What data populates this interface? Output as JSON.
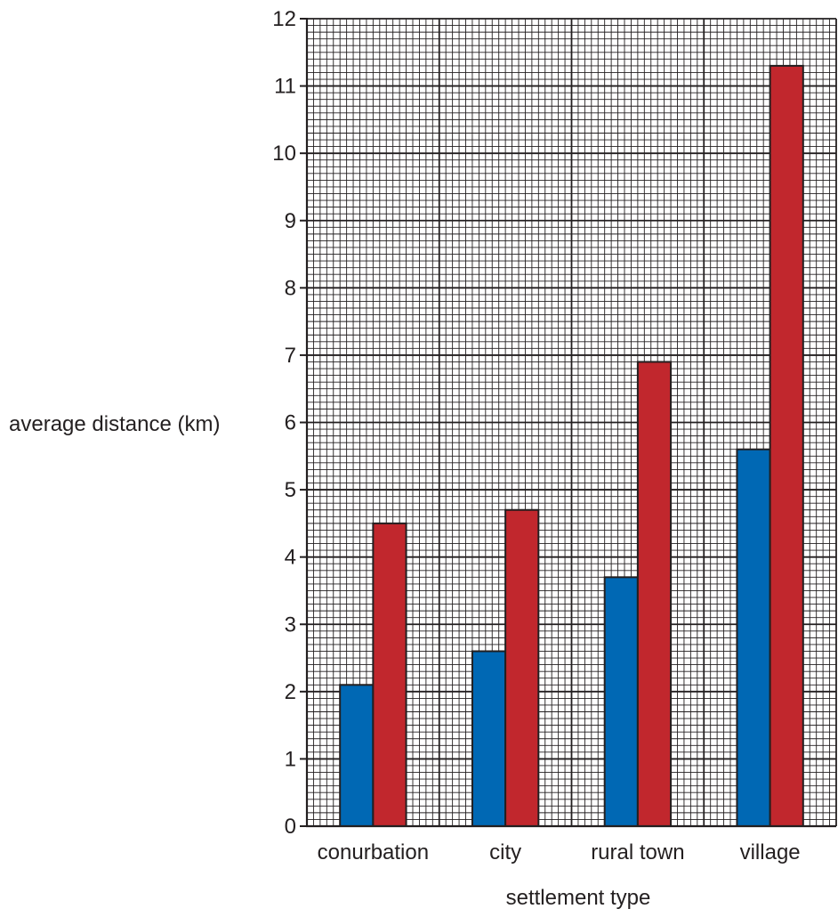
{
  "chart_data": {
    "type": "bar",
    "title": "",
    "xlabel": "settlement type",
    "ylabel": "average distance (km)",
    "categories": [
      "conurbation",
      "city",
      "rural town",
      "village"
    ],
    "series": [
      {
        "values": [
          2.1,
          2.6,
          3.7,
          5.6
        ],
        "color": "#0068b4"
      },
      {
        "values": [
          4.5,
          4.7,
          6.9,
          11.3
        ],
        "color": "#c1272d"
      }
    ],
    "ylim": [
      0,
      12
    ],
    "yticks": [
      0,
      1,
      2,
      3,
      4,
      5,
      6,
      7,
      8,
      9,
      10,
      11,
      12
    ],
    "grid": true,
    "legend": "none"
  }
}
